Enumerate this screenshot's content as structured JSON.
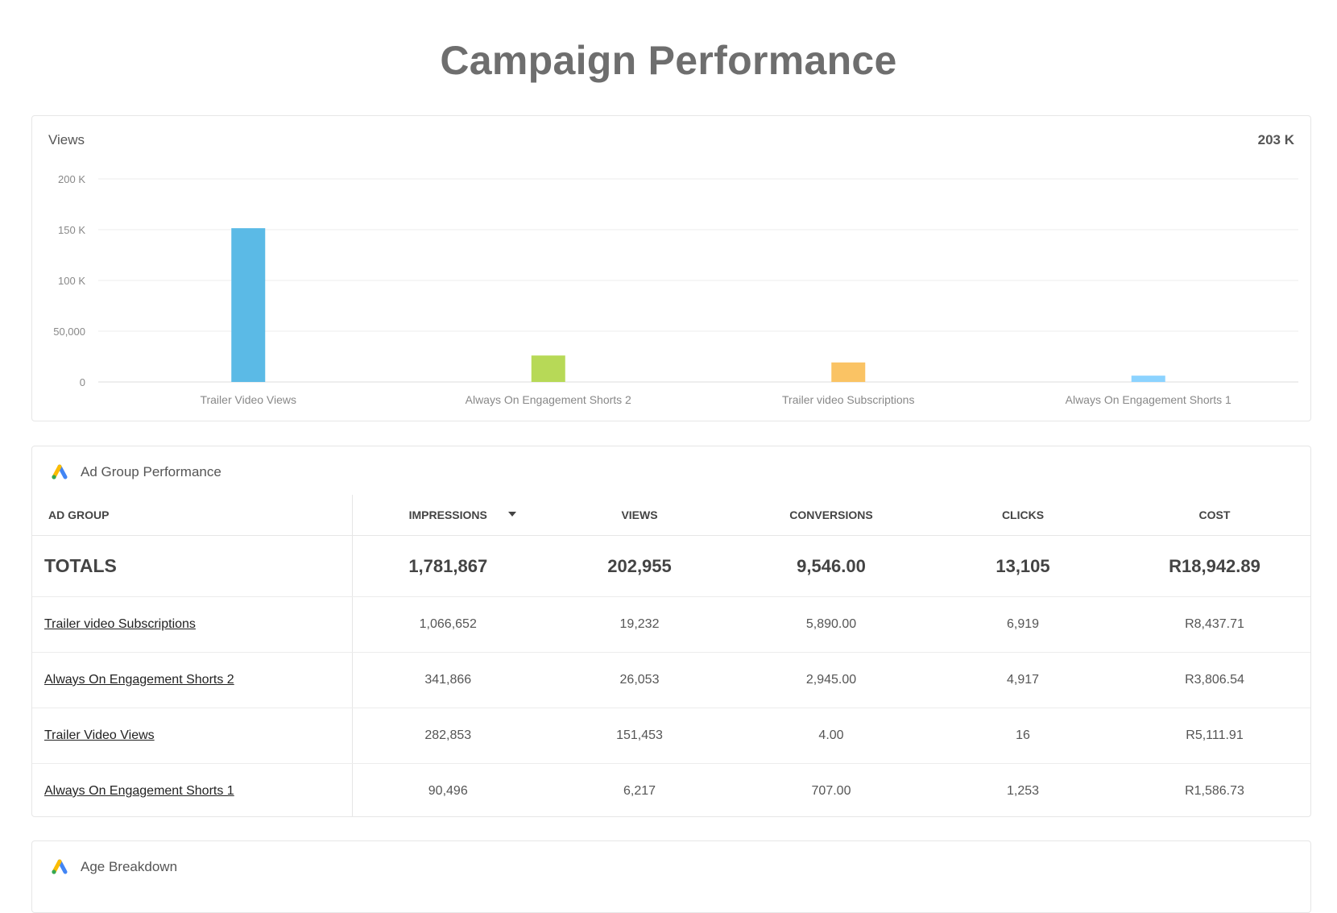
{
  "page": {
    "title": "Campaign Performance"
  },
  "chart": {
    "title": "Views",
    "total": "203 K"
  },
  "chart_data": {
    "type": "bar",
    "categories": [
      "Trailer Video Views",
      "Always On Engagement Shorts 2",
      "Trailer video Subscriptions",
      "Always On Engagement Shorts 1"
    ],
    "values": [
      151453,
      26053,
      19232,
      6217
    ],
    "colors": [
      "#5bbae6",
      "#b7d957",
      "#fac364",
      "#8cd3ff"
    ],
    "ylim": [
      0,
      200000
    ],
    "yticks": [
      0,
      50000,
      100000,
      150000,
      200000
    ],
    "ytick_labels": [
      "0",
      "50,000",
      "100 K",
      "150 K",
      "200 K"
    ],
    "grid": true,
    "title": "Views",
    "xlabel": "",
    "ylabel": ""
  },
  "ad_group_table": {
    "title": "Ad Group Performance",
    "icon": "google-ads-icon",
    "columns": [
      "AD GROUP",
      "IMPRESSIONS",
      "VIEWS",
      "CONVERSIONS",
      "CLICKS",
      "COST"
    ],
    "totals": [
      "TOTALS",
      "1,781,867",
      "202,955",
      "9,546.00",
      "13,105",
      "R18,942.89"
    ],
    "rows": [
      [
        "Trailer video Subscriptions",
        "1,066,652",
        "19,232",
        "5,890.00",
        "6,919",
        "R8,437.71"
      ],
      [
        "Always On Engagement Shorts 2",
        "341,866",
        "26,053",
        "2,945.00",
        "4,917",
        "R3,806.54"
      ],
      [
        "Trailer Video Views",
        "282,853",
        "151,453",
        "4.00",
        "16",
        "R5,111.91"
      ],
      [
        "Always On Engagement Shorts 1",
        "90,496",
        "6,217",
        "707.00",
        "1,253",
        "R1,586.73"
      ]
    ]
  },
  "age_breakdown": {
    "title": "Age Breakdown",
    "icon": "google-ads-icon"
  }
}
